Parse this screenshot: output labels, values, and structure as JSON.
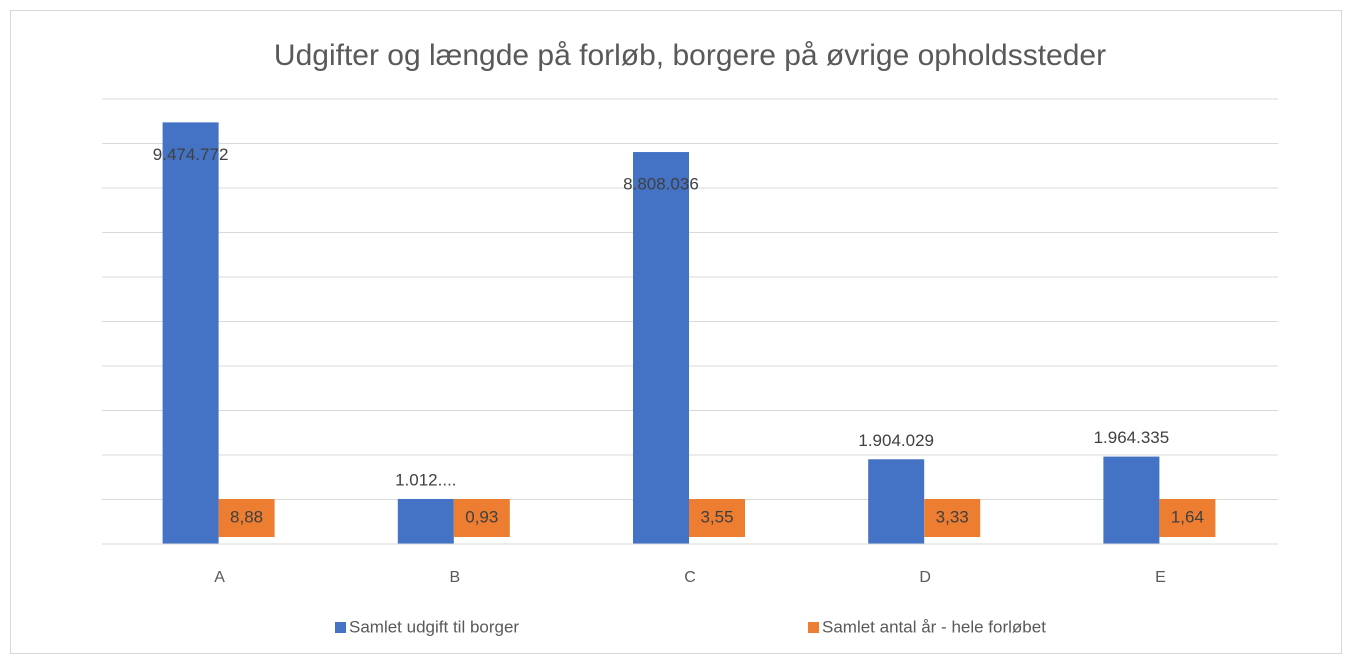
{
  "chart_data": {
    "type": "bar",
    "title": "Udgifter og længde på forløb, borgere på øvrige opholdssteder",
    "categories": [
      "A",
      "B",
      "C",
      "D",
      "E"
    ],
    "series": [
      {
        "name": "Samlet udgift til borger",
        "color": "#4472c4",
        "values": [
          9474772,
          1012000,
          8808036,
          1904029,
          1964335
        ],
        "value_labels": [
          "9.474.772",
          "1.012....",
          "8.808.036",
          "1.904.029",
          "1.964.335"
        ]
      },
      {
        "name": "Samlet antal år - hele forløbet",
        "color": "#ed7d31",
        "values": [
          8.88,
          0.93,
          3.55,
          3.33,
          1.64
        ],
        "value_labels": [
          "8,88",
          "0,93",
          "3,55",
          "3,33",
          "1,64"
        ]
      }
    ],
    "ylim": [
      0,
      10000000
    ],
    "yticks": [
      0,
      1000000,
      2000000,
      3000000,
      4000000,
      5000000,
      6000000,
      7000000,
      8000000,
      9000000,
      10000000
    ],
    "grid": true,
    "legend": "bottom"
  }
}
